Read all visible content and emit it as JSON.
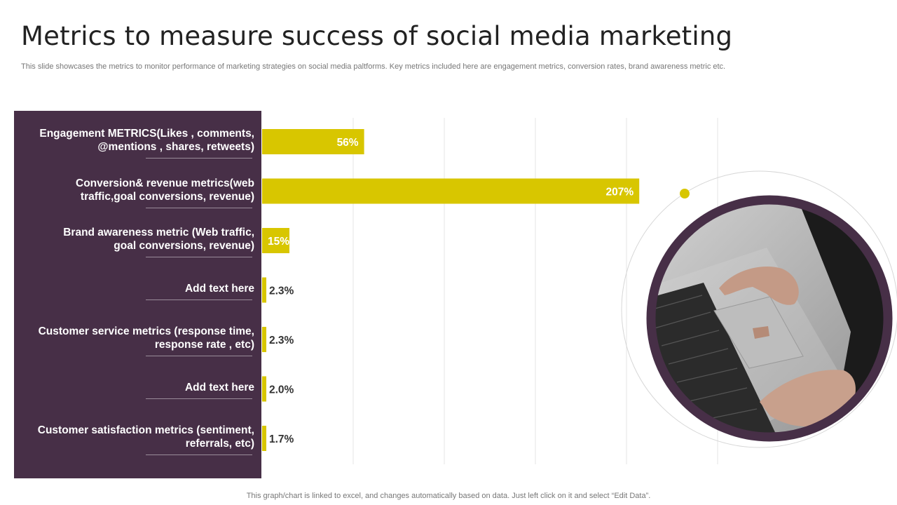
{
  "slide": {
    "title": "Metrics to measure success of social media marketing",
    "subtitle": "This slide showcases the metrics to monitor performance of marketing strategies on social media paltforms. Key metrics included here are engagement metrics, conversion rates,  brand awareness metric etc.",
    "footer": "This graph/chart is linked to excel,  and changes automatically based on data. Just left click on it and select “Edit Data”."
  },
  "colors": {
    "panel": "#472f47",
    "bar": "#d8c600",
    "accent_dot": "#d8c600",
    "photo_ring": "#472f47"
  },
  "photo": {
    "icon": "laptop-typing-photo"
  },
  "chart_data": {
    "type": "bar",
    "orientation": "horizontal",
    "categories": [
      [
        "Engagement METRICS(Likes  , comments,",
        "@mentions , shares, retweets)"
      ],
      [
        "Conversion& revenue metrics(web",
        "traffic,goal conversions, revenue)"
      ],
      [
        "Brand awareness metric (Web traffic,",
        "goal conversions, revenue)"
      ],
      [
        "Add text here"
      ],
      [
        "Customer service metrics (response time,",
        "response rate , etc)"
      ],
      [
        "Add text here"
      ],
      [
        "Customer satisfaction metrics (sentiment,",
        "referrals, etc)"
      ]
    ],
    "values": [
      56,
      207,
      15,
      2.3,
      2.3,
      2.0,
      1.7
    ],
    "data_labels": [
      "56%",
      "207%",
      "15%",
      "2.3%",
      "2.3%",
      "2.0%",
      "1.7%"
    ],
    "xlim": [
      0,
      250
    ],
    "grid": true
  }
}
